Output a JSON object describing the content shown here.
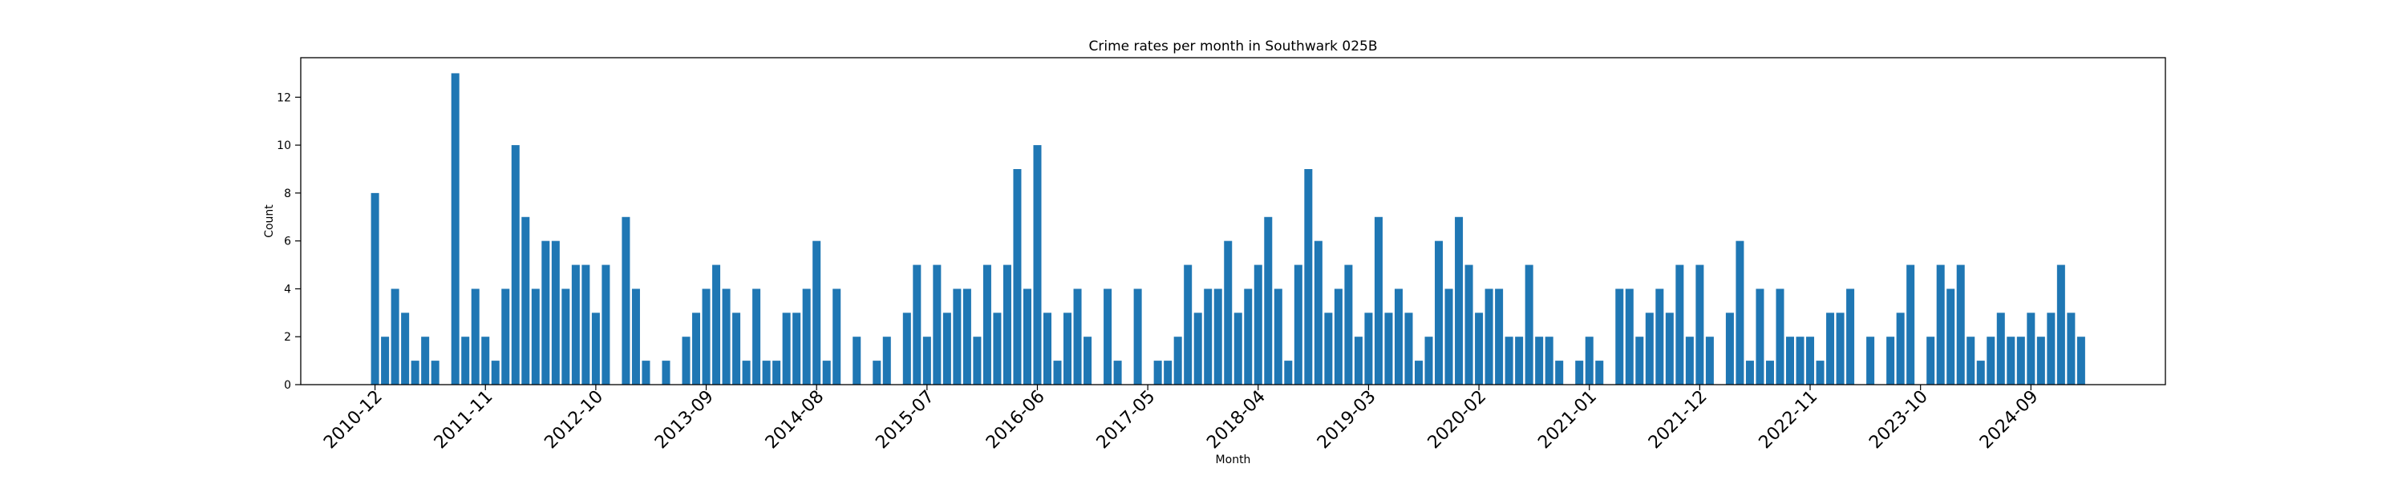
{
  "chart_data": {
    "type": "bar",
    "title": "Crime rates per month in Southwark 025B",
    "xlabel": "Month",
    "ylabel": "Count",
    "ylim": [
      0,
      13.65
    ],
    "yticks": [
      0,
      2,
      4,
      6,
      8,
      10,
      12
    ],
    "xlim": [
      -7.4,
      178.4
    ],
    "bar_color": "#1f77b4",
    "xtick_labels": [
      "2010-12",
      "2011-11",
      "2012-10",
      "2013-09",
      "2014-08",
      "2015-07",
      "2016-06",
      "2017-05",
      "2018-04",
      "2019-03",
      "2020-02",
      "2021-01",
      "2021-12",
      "2022-11",
      "2023-10",
      "2024-09"
    ],
    "xtick_positions": [
      0,
      11,
      22,
      33,
      44,
      55,
      66,
      77,
      88,
      99,
      110,
      121,
      132,
      143,
      154,
      165
    ],
    "start_year": 2010,
    "start_month": 12,
    "values": [
      8,
      2,
      4,
      3,
      1,
      2,
      1,
      0,
      13,
      2,
      4,
      2,
      1,
      4,
      10,
      7,
      4,
      6,
      6,
      4,
      5,
      5,
      3,
      5,
      0,
      7,
      4,
      1,
      0,
      1,
      0,
      2,
      3,
      4,
      5,
      4,
      3,
      1,
      4,
      1,
      1,
      3,
      3,
      4,
      6,
      1,
      4,
      0,
      2,
      0,
      1,
      2,
      0,
      3,
      5,
      2,
      5,
      3,
      4,
      4,
      2,
      5,
      3,
      5,
      9,
      4,
      10,
      3,
      1,
      3,
      4,
      2,
      0,
      4,
      1,
      0,
      4,
      0,
      1,
      1,
      2,
      5,
      3,
      4,
      4,
      6,
      3,
      4,
      5,
      7,
      4,
      1,
      5,
      9,
      6,
      3,
      4,
      5,
      2,
      3,
      7,
      3,
      4,
      3,
      1,
      2,
      6,
      4,
      7,
      5,
      3,
      4,
      4,
      2,
      2,
      5,
      2,
      2,
      1,
      0,
      1,
      2,
      1,
      0,
      4,
      4,
      2,
      3,
      4,
      3,
      5,
      2,
      5,
      2,
      0,
      3,
      6,
      1,
      4,
      1,
      4,
      2,
      2,
      2,
      1,
      3,
      3,
      4,
      0,
      2,
      0,
      2,
      3,
      5,
      0,
      2,
      5,
      4,
      5,
      2,
      1,
      2,
      3,
      2,
      2,
      3,
      2,
      3,
      5,
      3,
      2
    ]
  }
}
